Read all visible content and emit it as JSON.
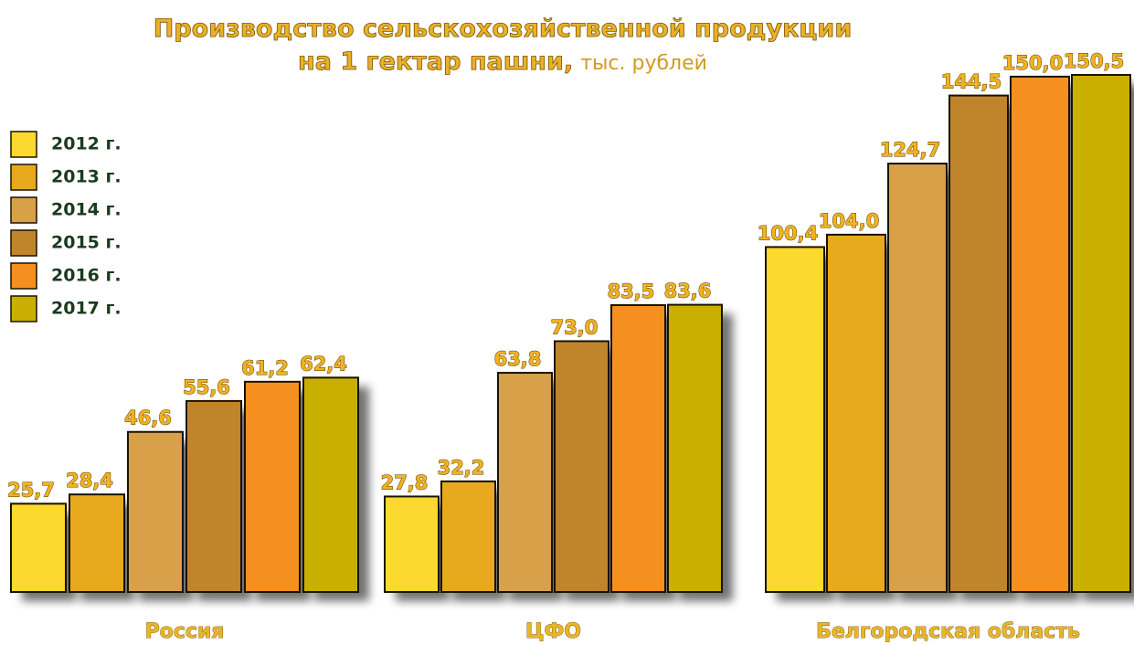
{
  "chart_data": {
    "type": "bar",
    "title": "Производство сельскохозяйственной продукции",
    "subtitle": "на 1 гектар пашни,",
    "unit": "тыс. рублей",
    "categories": [
      "Россия",
      "ЦФО",
      "Белгородская область"
    ],
    "series": [
      {
        "name": "2012 г.",
        "color": "#fcd92e",
        "values": [
          25.7,
          27.8,
          100.4
        ],
        "value_labels": [
          "25,7",
          "27,8",
          "100,4"
        ]
      },
      {
        "name": "2013 г.",
        "color": "#e8a91e",
        "values": [
          28.4,
          32.2,
          104.0
        ],
        "value_labels": [
          "28,4",
          "32,2",
          "104,0"
        ]
      },
      {
        "name": "2014 г.",
        "color": "#d9a04a",
        "values": [
          46.6,
          63.8,
          124.7
        ],
        "value_labels": [
          "46,6",
          "63,8",
          "124,7"
        ]
      },
      {
        "name": "2015 г.",
        "color": "#c0852a",
        "values": [
          55.6,
          73.0,
          144.5
        ],
        "value_labels": [
          "55,6",
          "73,0",
          "144,5"
        ]
      },
      {
        "name": "2016 г.",
        "color": "#f59020",
        "values": [
          61.2,
          83.5,
          150.0
        ],
        "value_labels": [
          "61,2",
          "83,5",
          "150,0"
        ]
      },
      {
        "name": "2017 г.",
        "color": "#c9b000",
        "values": [
          62.4,
          83.6,
          150.5
        ],
        "value_labels": [
          "62,4",
          "83,6",
          "150,5"
        ]
      }
    ],
    "legend": "left"
  }
}
